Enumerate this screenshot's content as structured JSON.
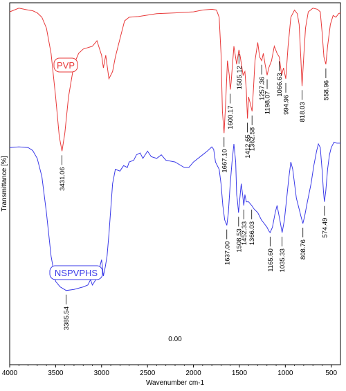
{
  "chart_data": {
    "type": "line",
    "xlabel": "Wavenumber cm-1",
    "ylabel": "Transmittance [%]",
    "xlim": [
      4000,
      400
    ],
    "x_reversed": true,
    "xticks": [
      4000,
      3500,
      3000,
      2500,
      2000,
      1500,
      1000,
      500
    ],
    "yticks_visible": false,
    "ytick_labels": [
      "0.00"
    ],
    "grid": false,
    "series": [
      {
        "name": "PVP",
        "color": "#e83a3a",
        "label_box": true,
        "points": [
          [
            4000,
            0.975
          ],
          [
            3900,
            0.985
          ],
          [
            3800,
            0.98
          ],
          [
            3750,
            0.978
          ],
          [
            3700,
            0.972
          ],
          [
            3650,
            0.96
          ],
          [
            3600,
            0.93
          ],
          [
            3550,
            0.86
          ],
          [
            3500,
            0.74
          ],
          [
            3460,
            0.63
          ],
          [
            3431,
            0.59
          ],
          [
            3400,
            0.64
          ],
          [
            3360,
            0.74
          ],
          [
            3300,
            0.83
          ],
          [
            3250,
            0.86
          ],
          [
            3200,
            0.872
          ],
          [
            3100,
            0.88
          ],
          [
            3050,
            0.895
          ],
          [
            3000,
            0.855
          ],
          [
            2980,
            0.82
          ],
          [
            2955,
            0.855
          ],
          [
            2920,
            0.79
          ],
          [
            2880,
            0.81
          ],
          [
            2850,
            0.85
          ],
          [
            2800,
            0.9
          ],
          [
            2750,
            0.95
          ],
          [
            2700,
            0.96
          ],
          [
            2600,
            0.962
          ],
          [
            2400,
            0.97
          ],
          [
            2200,
            0.972
          ],
          [
            2000,
            0.975
          ],
          [
            1900,
            0.98
          ],
          [
            1800,
            0.982
          ],
          [
            1750,
            0.98
          ],
          [
            1720,
            0.96
          ],
          [
            1700,
            0.86
          ],
          [
            1685,
            0.7
          ],
          [
            1667,
            0.64
          ],
          [
            1650,
            0.72
          ],
          [
            1630,
            0.84
          ],
          [
            1610,
            0.8
          ],
          [
            1600,
            0.76
          ],
          [
            1590,
            0.78
          ],
          [
            1560,
            0.88
          ],
          [
            1530,
            0.83
          ],
          [
            1505,
            0.87
          ],
          [
            1490,
            0.85
          ],
          [
            1460,
            0.8
          ],
          [
            1440,
            0.81
          ],
          [
            1425,
            0.76
          ],
          [
            1412,
            0.68
          ],
          [
            1400,
            0.74
          ],
          [
            1380,
            0.72
          ],
          [
            1362,
            0.7
          ],
          [
            1345,
            0.77
          ],
          [
            1330,
            0.84
          ],
          [
            1300,
            0.89
          ],
          [
            1280,
            0.85
          ],
          [
            1257,
            0.84
          ],
          [
            1240,
            0.86
          ],
          [
            1220,
            0.83
          ],
          [
            1198,
            0.8
          ],
          [
            1180,
            0.82
          ],
          [
            1150,
            0.84
          ],
          [
            1120,
            0.88
          ],
          [
            1090,
            0.86
          ],
          [
            1066,
            0.85
          ],
          [
            1040,
            0.8
          ],
          [
            1020,
            0.82
          ],
          [
            995,
            0.79
          ],
          [
            970,
            0.88
          ],
          [
            940,
            0.96
          ],
          [
            900,
            0.98
          ],
          [
            870,
            0.97
          ],
          [
            850,
            0.94
          ],
          [
            830,
            0.84
          ],
          [
            818,
            0.77
          ],
          [
            800,
            0.85
          ],
          [
            780,
            0.93
          ],
          [
            750,
            0.975
          ],
          [
            700,
            0.985
          ],
          [
            650,
            0.982
          ],
          [
            620,
            0.975
          ],
          [
            600,
            0.92
          ],
          [
            580,
            0.85
          ],
          [
            559,
            0.83
          ],
          [
            540,
            0.88
          ],
          [
            510,
            0.94
          ],
          [
            480,
            0.965
          ],
          [
            450,
            0.96
          ],
          [
            420,
            0.97
          ],
          [
            400,
            0.972
          ]
        ]
      },
      {
        "name": "NSPVPHS",
        "color": "#3a3ae8",
        "label_box": true,
        "points": [
          [
            4000,
            0.6
          ],
          [
            3900,
            0.602
          ],
          [
            3800,
            0.6
          ],
          [
            3750,
            0.592
          ],
          [
            3700,
            0.57
          ],
          [
            3650,
            0.52
          ],
          [
            3600,
            0.42
          ],
          [
            3550,
            0.3
          ],
          [
            3500,
            0.23
          ],
          [
            3450,
            0.215
          ],
          [
            3385,
            0.205
          ],
          [
            3300,
            0.208
          ],
          [
            3200,
            0.215
          ],
          [
            3150,
            0.22
          ],
          [
            3120,
            0.235
          ],
          [
            3100,
            0.22
          ],
          [
            3050,
            0.24
          ],
          [
            3000,
            0.29
          ],
          [
            2980,
            0.245
          ],
          [
            2960,
            0.27
          ],
          [
            2940,
            0.3
          ],
          [
            2920,
            0.36
          ],
          [
            2880,
            0.5
          ],
          [
            2850,
            0.54
          ],
          [
            2800,
            0.535
          ],
          [
            2760,
            0.55
          ],
          [
            2720,
            0.545
          ],
          [
            2700,
            0.56
          ],
          [
            2650,
            0.565
          ],
          [
            2620,
            0.58
          ],
          [
            2580,
            0.585
          ],
          [
            2550,
            0.57
          ],
          [
            2500,
            0.59
          ],
          [
            2460,
            0.575
          ],
          [
            2400,
            0.57
          ],
          [
            2350,
            0.58
          ],
          [
            2300,
            0.565
          ],
          [
            2200,
            0.56
          ],
          [
            2100,
            0.545
          ],
          [
            2050,
            0.545
          ],
          [
            2000,
            0.56
          ],
          [
            1900,
            0.58
          ],
          [
            1850,
            0.59
          ],
          [
            1800,
            0.602
          ],
          [
            1780,
            0.595
          ],
          [
            1760,
            0.56
          ],
          [
            1720,
            0.54
          ],
          [
            1700,
            0.5
          ],
          [
            1680,
            0.44
          ],
          [
            1660,
            0.4
          ],
          [
            1637,
            0.385
          ],
          [
            1620,
            0.42
          ],
          [
            1600,
            0.5
          ],
          [
            1580,
            0.56
          ],
          [
            1560,
            0.61
          ],
          [
            1540,
            0.56
          ],
          [
            1530,
            0.47
          ],
          [
            1520,
            0.45
          ],
          [
            1509,
            0.42
          ],
          [
            1495,
            0.46
          ],
          [
            1480,
            0.5
          ],
          [
            1465,
            0.47
          ],
          [
            1452,
            0.44
          ],
          [
            1440,
            0.47
          ],
          [
            1425,
            0.45
          ],
          [
            1400,
            0.45
          ],
          [
            1366,
            0.44
          ],
          [
            1340,
            0.43
          ],
          [
            1300,
            0.42
          ],
          [
            1260,
            0.4
          ],
          [
            1230,
            0.39
          ],
          [
            1200,
            0.38
          ],
          [
            1180,
            0.37
          ],
          [
            1166,
            0.365
          ],
          [
            1140,
            0.38
          ],
          [
            1110,
            0.42
          ],
          [
            1090,
            0.44
          ],
          [
            1060,
            0.4
          ],
          [
            1035,
            0.365
          ],
          [
            1010,
            0.4
          ],
          [
            985,
            0.46
          ],
          [
            960,
            0.52
          ],
          [
            940,
            0.56
          ],
          [
            920,
            0.54
          ],
          [
            880,
            0.46
          ],
          [
            850,
            0.43
          ],
          [
            830,
            0.41
          ],
          [
            809,
            0.39
          ],
          [
            790,
            0.41
          ],
          [
            760,
            0.45
          ],
          [
            720,
            0.5
          ],
          [
            690,
            0.55
          ],
          [
            660,
            0.59
          ],
          [
            640,
            0.61
          ],
          [
            620,
            0.6
          ],
          [
            600,
            0.54
          ],
          [
            585,
            0.48
          ],
          [
            575,
            0.45
          ],
          [
            560,
            0.48
          ],
          [
            540,
            0.54
          ],
          [
            520,
            0.58
          ],
          [
            500,
            0.6
          ],
          [
            470,
            0.615
          ],
          [
            440,
            0.612
          ],
          [
            400,
            0.612
          ]
        ]
      }
    ],
    "peak_labels": [
      {
        "series": "PVP",
        "x": 3431,
        "label": "3431.06",
        "y": 0.59
      },
      {
        "series": "PVP",
        "x": 1667.1,
        "label": "1667.10",
        "y": 0.64
      },
      {
        "series": "PVP",
        "x": 1600.17,
        "label": "1600.17",
        "y": 0.76
      },
      {
        "series": "PVP",
        "x": 1505.12,
        "label": "1505.12",
        "y": 0.87
      },
      {
        "series": "PVP",
        "x": 1412.65,
        "label": "1412.65",
        "y": 0.68
      },
      {
        "series": "PVP",
        "x": 1362.58,
        "label": "1362.58",
        "y": 0.7
      },
      {
        "series": "PVP",
        "x": 1257.36,
        "label": "1257.36",
        "y": 0.84
      },
      {
        "series": "PVP",
        "x": 1198.07,
        "label": "1198.07",
        "y": 0.8
      },
      {
        "series": "PVP",
        "x": 1066.63,
        "label": "1066.63",
        "y": 0.85
      },
      {
        "series": "PVP",
        "x": 994.96,
        "label": "994.96",
        "y": 0.79
      },
      {
        "series": "PVP",
        "x": 818.03,
        "label": "818.03",
        "y": 0.77
      },
      {
        "series": "PVP",
        "x": 558.96,
        "label": "558.96",
        "y": 0.83
      },
      {
        "series": "NSPVPHS",
        "x": 3385.54,
        "label": "3385.54",
        "y": 0.205
      },
      {
        "series": "NSPVPHS",
        "x": 1637.0,
        "label": "1637.00",
        "y": 0.385
      },
      {
        "series": "NSPVPHS",
        "x": 1508.53,
        "label": "1508.53",
        "y": 0.42
      },
      {
        "series": "NSPVPHS",
        "x": 1452.33,
        "label": "1452.33",
        "y": 0.44
      },
      {
        "series": "NSPVPHS",
        "x": 1366.03,
        "label": "1366.03",
        "y": 0.44
      },
      {
        "series": "NSPVPHS",
        "x": 1165.6,
        "label": "1165.60",
        "y": 0.365
      },
      {
        "series": "NSPVPHS",
        "x": 1035.33,
        "label": "1035.33",
        "y": 0.365
      },
      {
        "series": "NSPVPHS",
        "x": 808.76,
        "label": "808.76",
        "y": 0.39
      },
      {
        "series": "NSPVPHS",
        "x": 574.49,
        "label": "574.49",
        "y": 0.45
      }
    ]
  }
}
